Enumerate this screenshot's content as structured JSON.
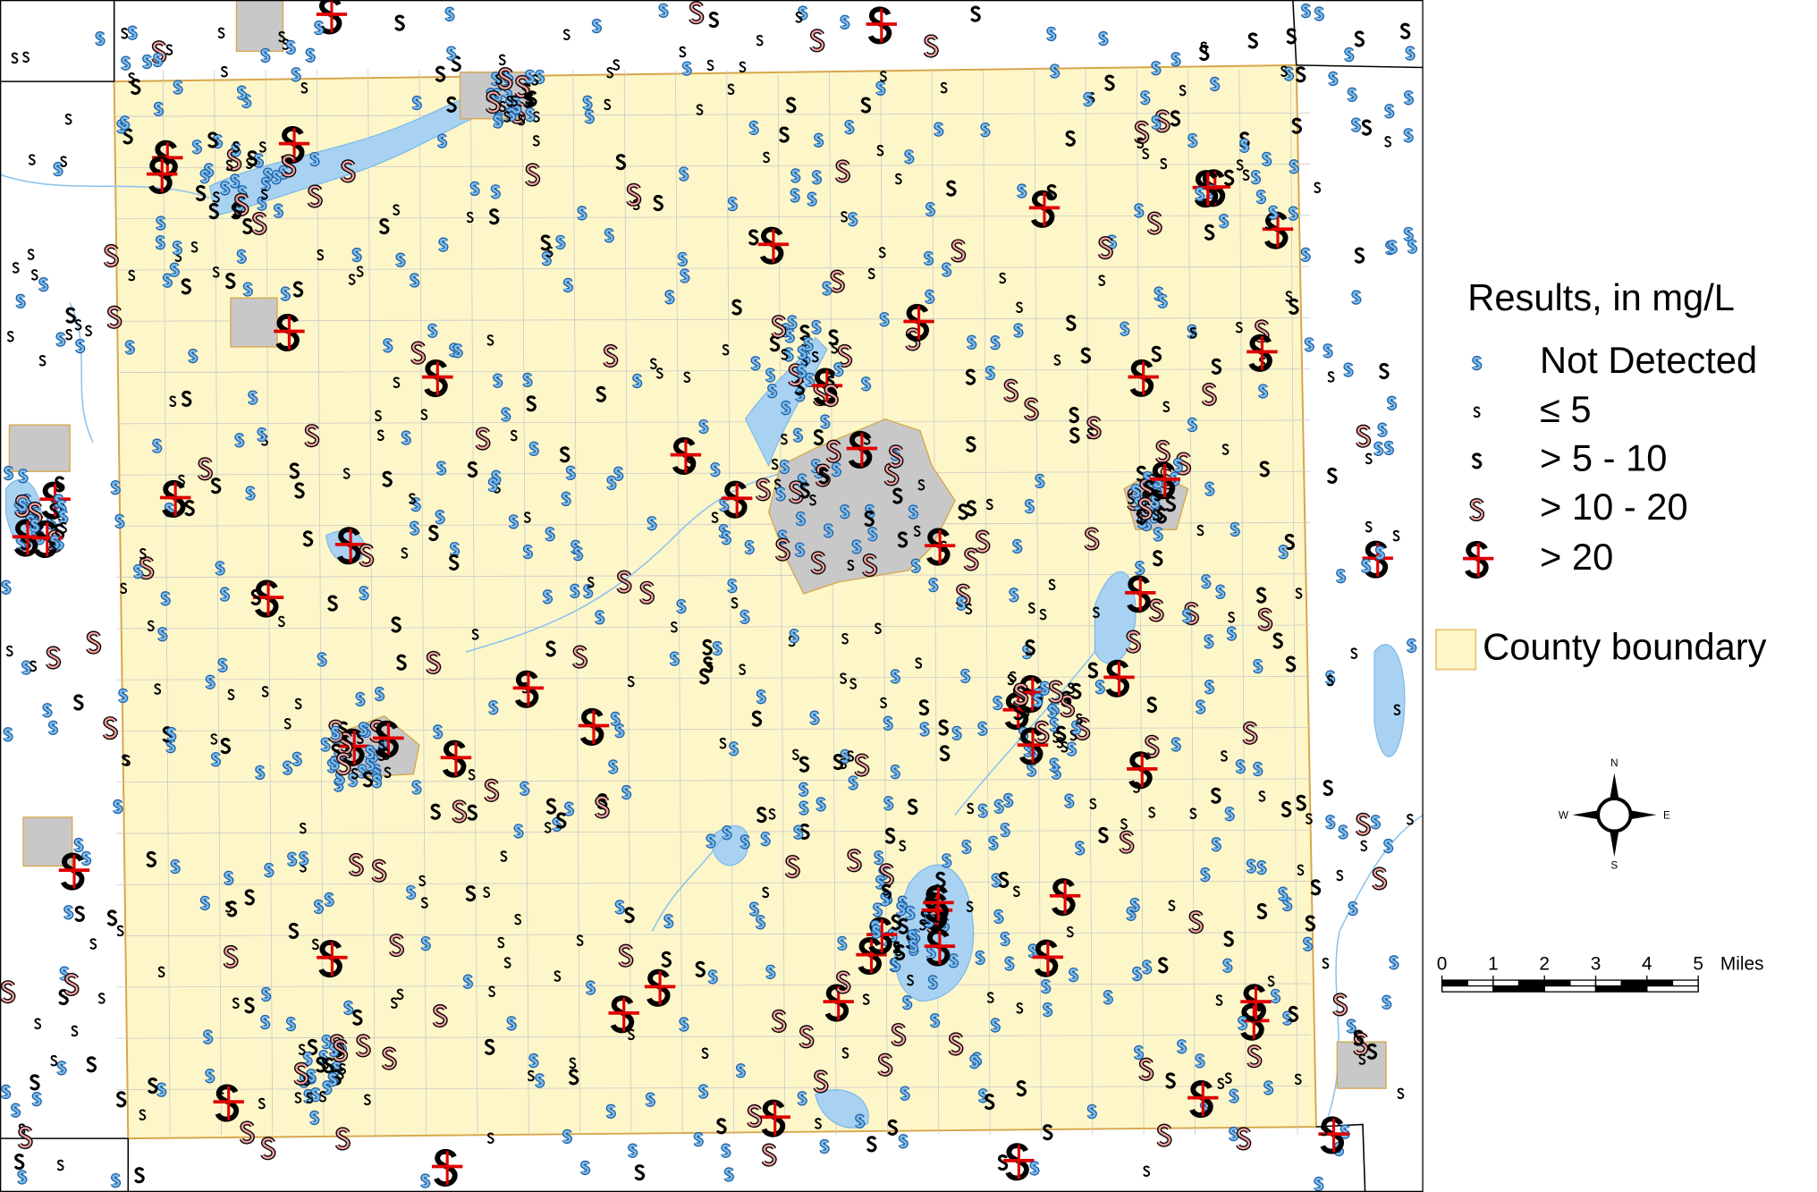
{
  "legend": {
    "title": "Results, in mg/L",
    "items": [
      "Not Detected",
      "≤ 5",
      "> 5 - 10",
      "> 10 - 20",
      "> 20"
    ],
    "boundary": "County boundary"
  },
  "scale_bar": {
    "ticks": [
      0,
      1,
      2,
      3,
      4,
      5
    ],
    "unit": "Miles"
  },
  "compass": {
    "n": "N",
    "s": "S",
    "e": "E",
    "w": "W"
  }
}
